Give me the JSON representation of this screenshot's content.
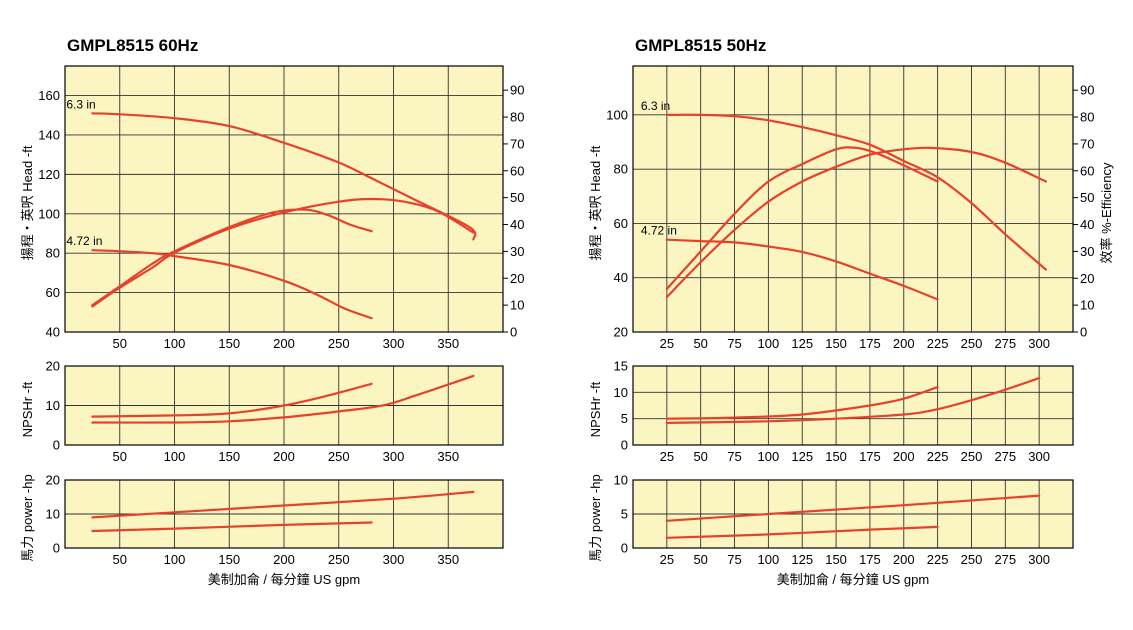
{
  "chart_data": [
    {
      "title": "GMPL8515  60Hz",
      "type": "line",
      "xlabel": "美制加侖 / 每分鐘  US gpm",
      "xlim": [
        0,
        400
      ],
      "xticks": [
        50,
        100,
        150,
        200,
        250,
        300,
        350
      ],
      "curve_color": "#e8412b",
      "panels": [
        {
          "ylabel": "揚程・英呎   Head -ft",
          "ylim": [
            40,
            175
          ],
          "yticks": [
            40,
            60,
            80,
            100,
            120,
            140,
            160
          ],
          "y2label": "",
          "y2lim": [
            0,
            99
          ],
          "y2ticks": [
            0,
            10,
            20,
            30,
            40,
            50,
            60,
            70,
            80,
            90
          ],
          "annotations": [
            {
              "text": "6.3 in",
              "x": 25,
              "y": 151
            },
            {
              "text": "4.72 in",
              "x": 25,
              "y": 81.5
            }
          ],
          "series": [
            {
              "axis": "left",
              "points": [
                [
                  25,
                  151
                ],
                [
                  50,
                  150.5
                ],
                [
                  100,
                  148.5
                ],
                [
                  150,
                  144.5
                ],
                [
                  200,
                  136
                ],
                [
                  250,
                  126
                ],
                [
                  280,
                  118
                ],
                [
                  320,
                  107
                ],
                [
                  370,
                  93
                ],
                [
                  373,
                  87
                ]
              ]
            },
            {
              "axis": "left",
              "points": [
                [
                  25,
                  81.5
                ],
                [
                  50,
                  81
                ],
                [
                  80,
                  80
                ],
                [
                  100,
                  78.5
                ],
                [
                  150,
                  74
                ],
                [
                  200,
                  66
                ],
                [
                  230,
                  59
                ],
                [
                  255,
                  52
                ],
                [
                  280,
                  47
                ]
              ]
            },
            {
              "axis": "right",
              "points": [
                [
                  25,
                  10
                ],
                [
                  50,
                  17
                ],
                [
                  80,
                  25.5
                ],
                [
                  100,
                  30
                ],
                [
                  150,
                  39
                ],
                [
                  190,
                  44.5
                ],
                [
                  220,
                  45.5
                ],
                [
                  240,
                  43.5
                ],
                [
                  260,
                  40
                ],
                [
                  280,
                  37.5
                ]
              ]
            },
            {
              "axis": "right",
              "points": [
                [
                  25,
                  9.5
                ],
                [
                  50,
                  16.5
                ],
                [
                  80,
                  24
                ],
                [
                  100,
                  29.5
                ],
                [
                  150,
                  38.5
                ],
                [
                  200,
                  44.5
                ],
                [
                  250,
                  48.5
                ],
                [
                  280,
                  49.5
                ],
                [
                  310,
                  48.5
                ],
                [
                  340,
                  45
                ],
                [
                  373,
                  37
                ]
              ]
            }
          ]
        },
        {
          "ylabel": "NPSHr -ft",
          "ylim": [
            0,
            20
          ],
          "yticks": [
            0,
            10,
            20
          ],
          "series": [
            {
              "axis": "left",
              "points": [
                [
                  25,
                  7.2
                ],
                [
                  100,
                  7.5
                ],
                [
                  150,
                  8
                ],
                [
                  200,
                  10
                ],
                [
                  240,
                  12.5
                ],
                [
                  280,
                  15.5
                ]
              ]
            },
            {
              "axis": "left",
              "points": [
                [
                  25,
                  5.7
                ],
                [
                  100,
                  5.7
                ],
                [
                  150,
                  6
                ],
                [
                  200,
                  7
                ],
                [
                  250,
                  8.5
                ],
                [
                  290,
                  10
                ],
                [
                  320,
                  12.5
                ],
                [
                  373,
                  17.5
                ]
              ]
            }
          ]
        },
        {
          "ylabel": "馬力   power -hp",
          "ylim": [
            0,
            20
          ],
          "yticks": [
            0,
            10,
            20
          ],
          "series": [
            {
              "axis": "left",
              "points": [
                [
                  25,
                  9
                ],
                [
                  100,
                  10.5
                ],
                [
                  200,
                  12.5
                ],
                [
                  300,
                  14.5
                ],
                [
                  373,
                  16.5
                ]
              ]
            },
            {
              "axis": "left",
              "points": [
                [
                  25,
                  5
                ],
                [
                  100,
                  5.7
                ],
                [
                  200,
                  6.8
                ],
                [
                  280,
                  7.5
                ]
              ]
            }
          ]
        }
      ]
    },
    {
      "title": "GMPL8515  50Hz",
      "type": "line",
      "xlabel": "美制加侖 / 每分鐘  US gpm",
      "xlim": [
        0,
        325
      ],
      "xticks": [
        25,
        50,
        75,
        100,
        125,
        150,
        175,
        200,
        225,
        250,
        275,
        300
      ],
      "curve_color": "#e8412b",
      "panels": [
        {
          "ylabel": "揚程・英呎   Head -ft",
          "ylim": [
            20,
            118
          ],
          "yticks": [
            20,
            40,
            60,
            80,
            100
          ],
          "y2label": "效率   %-Efficiency",
          "y2lim": [
            0,
            99
          ],
          "y2ticks": [
            0,
            10,
            20,
            30,
            40,
            50,
            60,
            70,
            80,
            90
          ],
          "annotations": [
            {
              "text": "6.3 in",
              "x": 25,
              "y": 100
            },
            {
              "text": "4.72 in",
              "x": 25,
              "y": 54
            }
          ],
          "series": [
            {
              "axis": "left",
              "points": [
                [
                  25,
                  100
                ],
                [
                  50,
                  100
                ],
                [
                  75,
                  99.5
                ],
                [
                  100,
                  98
                ],
                [
                  125,
                  95.5
                ],
                [
                  150,
                  92.5
                ],
                [
                  175,
                  89
                ],
                [
                  200,
                  83
                ],
                [
                  225,
                  77
                ],
                [
                  250,
                  67.5
                ],
                [
                  275,
                  56
                ],
                [
                  305,
                  43
                ]
              ]
            },
            {
              "axis": "left",
              "points": [
                [
                  25,
                  54
                ],
                [
                  50,
                  53.5
                ],
                [
                  75,
                  53
                ],
                [
                  100,
                  51.5
                ],
                [
                  125,
                  49.5
                ],
                [
                  150,
                  46
                ],
                [
                  175,
                  41.5
                ],
                [
                  200,
                  37
                ],
                [
                  225,
                  32
                ]
              ]
            },
            {
              "axis": "right",
              "points": [
                [
                  25,
                  16
                ],
                [
                  50,
                  30
                ],
                [
                  75,
                  44
                ],
                [
                  100,
                  56
                ],
                [
                  125,
                  62.5
                ],
                [
                  150,
                  68
                ],
                [
                  165,
                  68.5
                ],
                [
                  180,
                  66.5
                ],
                [
                  200,
                  62
                ],
                [
                  225,
                  56
                ]
              ]
            },
            {
              "axis": "right",
              "points": [
                [
                  25,
                  13
                ],
                [
                  50,
                  26
                ],
                [
                  75,
                  38
                ],
                [
                  100,
                  48.5
                ],
                [
                  125,
                  56
                ],
                [
                  150,
                  61.5
                ],
                [
                  175,
                  66
                ],
                [
                  200,
                  68
                ],
                [
                  220,
                  68.5
                ],
                [
                  250,
                  67
                ],
                [
                  275,
                  63
                ],
                [
                  305,
                  56
                ]
              ]
            }
          ]
        },
        {
          "ylabel": "NPSHr -ft",
          "ylim": [
            0,
            15
          ],
          "yticks": [
            0,
            5,
            10,
            15
          ],
          "series": [
            {
              "axis": "left",
              "points": [
                [
                  25,
                  5
                ],
                [
                  75,
                  5.2
                ],
                [
                  125,
                  5.8
                ],
                [
                  175,
                  7.5
                ],
                [
                  200,
                  8.8
                ],
                [
                  225,
                  11
                ]
              ]
            },
            {
              "axis": "left",
              "points": [
                [
                  25,
                  4.2
                ],
                [
                  100,
                  4.5
                ],
                [
                  150,
                  5
                ],
                [
                  200,
                  5.8
                ],
                [
                  225,
                  6.8
                ],
                [
                  250,
                  8.5
                ],
                [
                  275,
                  10.5
                ],
                [
                  300,
                  12.7
                ]
              ]
            }
          ]
        },
        {
          "ylabel": "馬力   power -hp",
          "ylim": [
            0,
            10
          ],
          "yticks": [
            0,
            5,
            10
          ],
          "series": [
            {
              "axis": "left",
              "points": [
                [
                  25,
                  4
                ],
                [
                  100,
                  5
                ],
                [
                  200,
                  6.3
                ],
                [
                  300,
                  7.7
                ]
              ]
            },
            {
              "axis": "left",
              "points": [
                [
                  25,
                  1.5
                ],
                [
                  100,
                  2
                ],
                [
                  175,
                  2.7
                ],
                [
                  225,
                  3.1
                ]
              ]
            }
          ]
        }
      ]
    }
  ]
}
